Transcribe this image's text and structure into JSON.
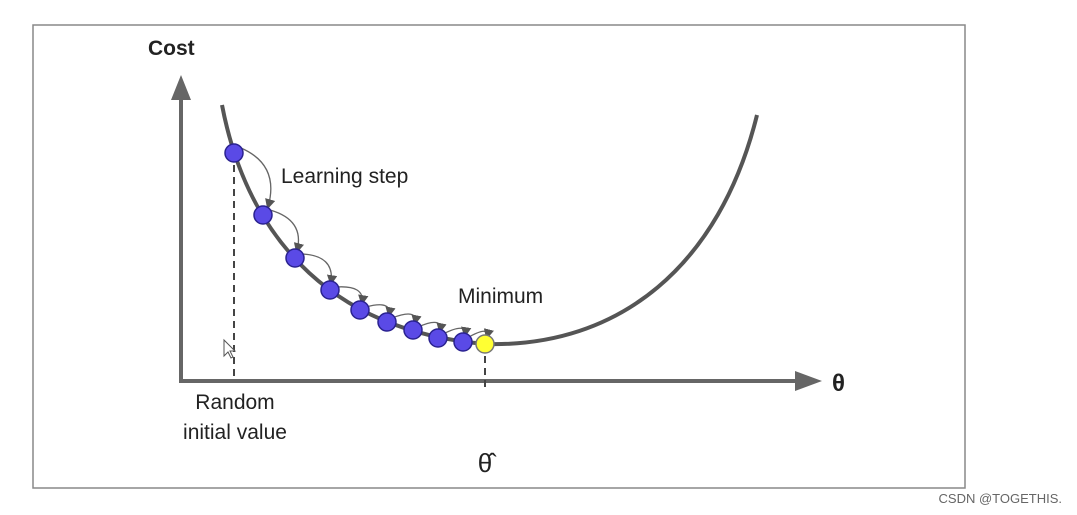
{
  "axes": {
    "y_label": "Cost",
    "x_label": "θ"
  },
  "annotations": {
    "learning_step": "Learning step",
    "minimum": "Minimum",
    "random_initial_value": [
      "Random",
      "initial value"
    ],
    "theta_hat": "θ̂"
  },
  "watermark": "CSDN @TOGETHIS."
}
